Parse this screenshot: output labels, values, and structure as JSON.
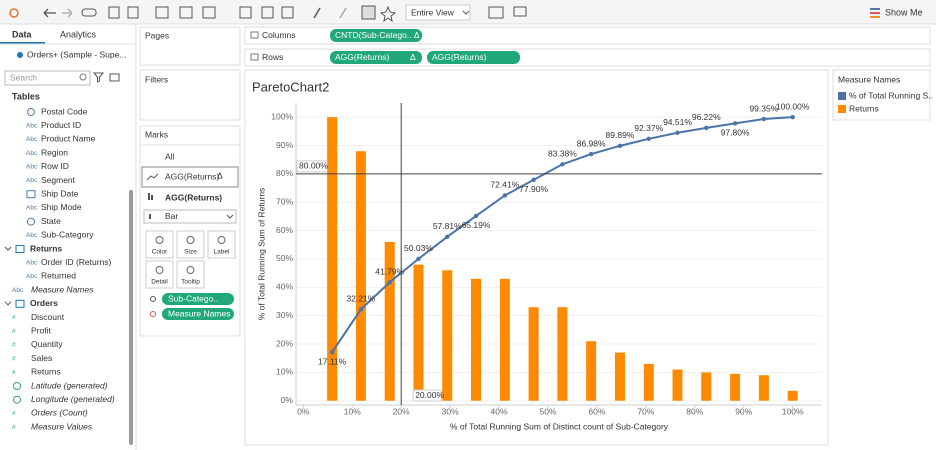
{
  "toolbar": {
    "view_mode": "Entire View",
    "show_me": "Show Me"
  },
  "data_pane": {
    "tabs": [
      "Data",
      "Analytics"
    ],
    "source": "Orders+ (Sample - Supe...",
    "search": "Search",
    "tables_heading": "Tables",
    "fields": [
      {
        "name": "Postal Code",
        "kind": "geo"
      },
      {
        "name": "Product ID",
        "kind": "Abc"
      },
      {
        "name": "Product Name",
        "kind": "Abc"
      },
      {
        "name": "Region",
        "kind": "Abc"
      },
      {
        "name": "Row ID",
        "kind": "Abc"
      },
      {
        "name": "Segment",
        "kind": "Abc"
      },
      {
        "name": "Ship Date",
        "kind": "date"
      },
      {
        "name": "Ship Mode",
        "kind": "Abc"
      },
      {
        "name": "State",
        "kind": "geo"
      },
      {
        "name": "Sub-Category",
        "kind": "Abc"
      },
      {
        "name": "Returns",
        "kind": "group"
      },
      {
        "name": "Order ID (Returns)",
        "kind": "Abc"
      },
      {
        "name": "Returned",
        "kind": "Abc"
      },
      {
        "name": "Measure Names",
        "kind": "Abc",
        "italic": true
      },
      {
        "name": "Orders",
        "kind": "group"
      },
      {
        "name": "Discount",
        "kind": "#"
      },
      {
        "name": "Profit",
        "kind": "#"
      },
      {
        "name": "Quantity",
        "kind": "#"
      },
      {
        "name": "Sales",
        "kind": "#"
      },
      {
        "name": "Returns",
        "kind": "#"
      },
      {
        "name": "Latitude (generated)",
        "kind": "geo",
        "italic": true
      },
      {
        "name": "Longitude (generated)",
        "kind": "geo",
        "italic": true
      },
      {
        "name": "Orders (Count)",
        "kind": "#",
        "italic": true
      },
      {
        "name": "Measure Values",
        "kind": "#",
        "italic": true
      }
    ]
  },
  "shelves": {
    "pages": "Pages",
    "filters": "Filters",
    "columns": {
      "label": "Columns",
      "pills": [
        "CNTD(Sub-Catego.. Δ"
      ]
    },
    "rows": {
      "label": "Rows",
      "pills": [
        "AGG(Returns)",
        "Δ",
        "AGG(Returns)"
      ]
    }
  },
  "marks": {
    "title": "Marks",
    "all": "All",
    "layer_line": "AGG(Returns)",
    "layer_line_delta": "Δ",
    "layer_bar": "AGG(Returns)",
    "mark_type": "Bar",
    "buttons": [
      "Color",
      "Size",
      "Label",
      "Detail",
      "Tooltip"
    ],
    "pills": [
      "Sub-Catego..",
      "Measure Names"
    ]
  },
  "legend": {
    "title": "Measure Names"
  },
  "chart_data": {
    "type": "combo",
    "title": "ParetoChart2",
    "x_label": "% of Total Running Sum of Distinct count of Sub-Category",
    "y_label": "% of Total Running Sum of Returns",
    "x": [
      5.88,
      11.76,
      17.65,
      23.53,
      29.41,
      35.29,
      41.18,
      47.06,
      52.94,
      58.82,
      64.71,
      70.59,
      76.47,
      82.35,
      88.24,
      94.12,
      100
    ],
    "series": [
      {
        "name": "% of Total Running S..",
        "type": "line",
        "color": "#4a74a8",
        "values": [
          17.11,
          32.21,
          41.79,
          50.03,
          57.81,
          65.19,
          72.41,
          77.9,
          83.38,
          86.98,
          89.89,
          92.37,
          94.51,
          96.22,
          97.8,
          99.35,
          100.0
        ],
        "value_labels": [
          "17.11%",
          "32.21%",
          "41.79%",
          "50.03%",
          "57.81%",
          "65.19%",
          "72.41%",
          "77.90%",
          "83.38%",
          "86.98%",
          "89.89%",
          "92.37%",
          "94.51%",
          "96.22%",
          "97.80%",
          "99.35%",
          "100.00%"
        ]
      },
      {
        "name": "Returns",
        "type": "bar",
        "color": "#ff8a00",
        "values": [
          100,
          88,
          56,
          48,
          46,
          43,
          43,
          33,
          33,
          21,
          17,
          13,
          11,
          10,
          9.5,
          9,
          3.5
        ]
      }
    ],
    "ref_lines": [
      {
        "axis": "x",
        "value": 20,
        "label": "20.00%"
      },
      {
        "axis": "y",
        "value": 80,
        "label": "80.00%"
      }
    ],
    "xlim": [
      -1.5,
      106
    ],
    "ylim": [
      -1.5,
      105
    ],
    "xticks": [
      {
        "value": 0,
        "label": "0%"
      },
      {
        "value": 10,
        "label": "10%"
      },
      {
        "value": 20,
        "label": "20%"
      },
      {
        "value": 30,
        "label": "30%"
      },
      {
        "value": 40,
        "label": "40%"
      },
      {
        "value": 50,
        "label": "50%"
      },
      {
        "value": 60,
        "label": "60%"
      },
      {
        "value": 70,
        "label": "70%"
      },
      {
        "value": 80,
        "label": "80%"
      },
      {
        "value": 90,
        "label": "90%"
      },
      {
        "value": 100,
        "label": "100%"
      }
    ],
    "yticks": [
      {
        "value": 0,
        "label": "0%"
      },
      {
        "value": 10,
        "label": "10%"
      },
      {
        "value": 20,
        "label": "20%"
      },
      {
        "value": 30,
        "label": "30%"
      },
      {
        "value": 40,
        "label": "40%"
      },
      {
        "value": 50,
        "label": "50%"
      },
      {
        "value": 60,
        "label": "60%"
      },
      {
        "value": 70,
        "label": "70%"
      },
      {
        "value": 80,
        "label": "80%"
      },
      {
        "value": 90,
        "label": "90%"
      },
      {
        "value": 100,
        "label": "100%"
      }
    ],
    "grid": true
  }
}
